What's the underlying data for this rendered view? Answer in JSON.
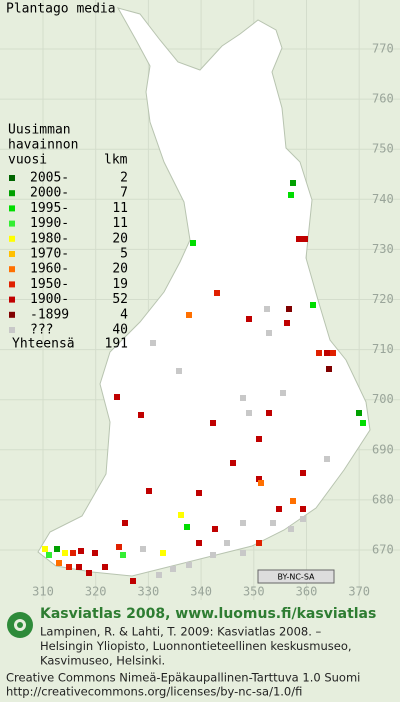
{
  "title": "Plantago media",
  "legend": {
    "heading": [
      "Uusimman",
      "havainnon",
      "vuosi"
    ],
    "count_heading": "lkm",
    "rows": [
      {
        "label": "2005-",
        "count": 2,
        "color": "#006400"
      },
      {
        "label": "2000-",
        "count": 7,
        "color": "#00a000"
      },
      {
        "label": "1995-",
        "count": 11,
        "color": "#00dd00"
      },
      {
        "label": "1990-",
        "count": 11,
        "color": "#33ee33"
      },
      {
        "label": "1980-",
        "count": 20,
        "color": "#ffff00"
      },
      {
        "label": "1970-",
        "count": 5,
        "color": "#ffc000"
      },
      {
        "label": "1960-",
        "count": 20,
        "color": "#ff7000"
      },
      {
        "label": "1950-",
        "count": 19,
        "color": "#e02000"
      },
      {
        "label": "1900-",
        "count": 52,
        "color": "#c00000"
      },
      {
        "label": "-1899",
        "count": 4,
        "color": "#800000"
      },
      {
        "label": "???",
        "count": 40,
        "color": "#c8c8c8"
      }
    ],
    "total_label": "Yhteensä",
    "total": 191
  },
  "grid": {
    "y_labels": [
      "770",
      "760",
      "750",
      "740",
      "730",
      "720",
      "710",
      "700",
      "690",
      "680",
      "670"
    ],
    "x_labels": [
      "310",
      "320",
      "330",
      "340",
      "350",
      "360",
      "370"
    ]
  },
  "license_badge": "BY-NC-SA",
  "credits": {
    "heading": "Kasviatlas 2008, www.luomus.fi/kasviatlas",
    "citation": [
      "Lampinen, R. & Lahti, T. 2009: Kasviatlas 2008. –",
      "Helsingin Yliopisto, Luonnontieteellinen keskusmuseo,",
      "Kasvimuseo, Helsinki."
    ],
    "license": [
      "Creative Commons Nimeä-Epäkaupallinen-Tarttuva 1.0 Suomi",
      "http://creativecommons.org/licenses/by-nc-sa/1.0/fi"
    ]
  }
}
